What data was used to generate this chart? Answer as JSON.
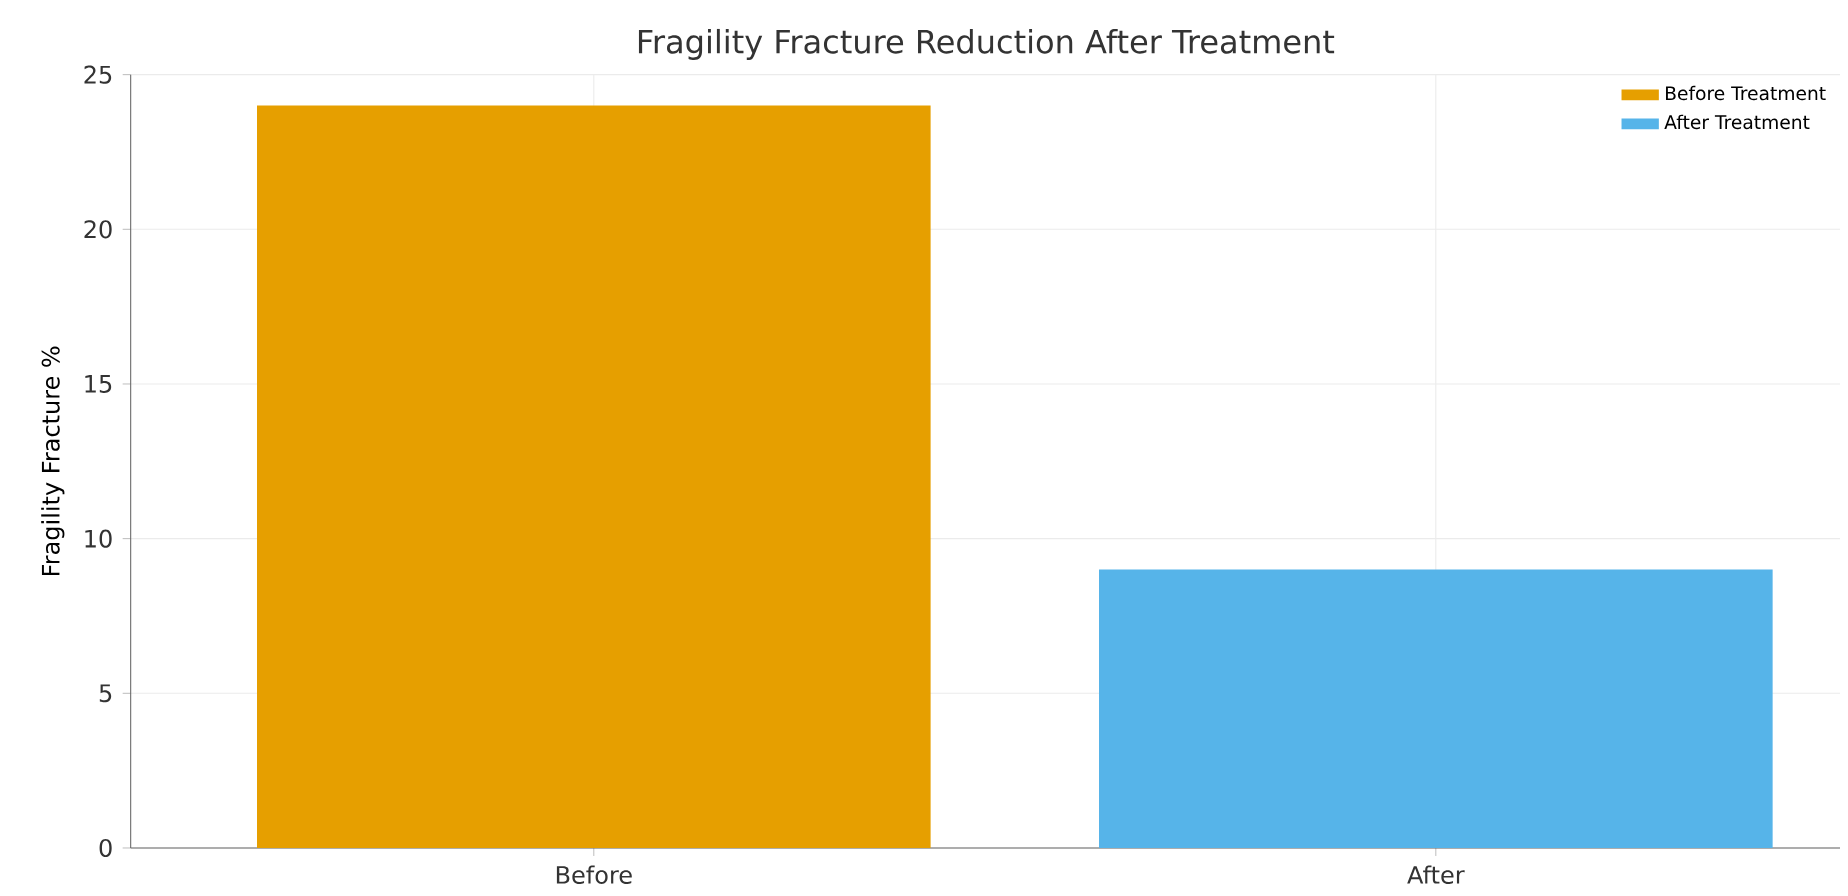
{
  "chart_data": {
    "type": "bar",
    "title": "Fragility Fracture Reduction After Treatment",
    "ylabel": "Fragility Fracture %",
    "categories": [
      "Before",
      "After"
    ],
    "series": [
      {
        "name": "Before Treatment",
        "color": "#e69f00",
        "values": [
          24,
          null
        ]
      },
      {
        "name": "After Treatment",
        "color": "#56b4e9",
        "values": [
          null,
          9
        ]
      }
    ],
    "ylim": [
      0,
      25
    ],
    "yticks": [
      0,
      5,
      10,
      15,
      20,
      25
    ],
    "grid": true,
    "legend": "top right"
  }
}
